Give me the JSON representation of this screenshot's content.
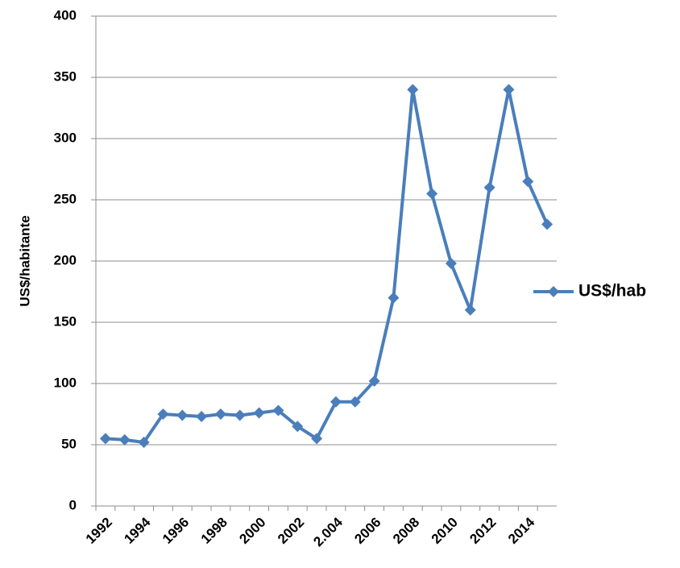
{
  "chart_data": {
    "type": "line",
    "y_label": "US$/habitante",
    "categories": [
      "1992",
      null,
      "1994",
      null,
      "1996",
      null,
      "1998",
      null,
      "2000",
      null,
      "2002",
      null,
      "2.004",
      null,
      "2006",
      null,
      "2008",
      null,
      "2010",
      null,
      "2012",
      null,
      "2014",
      null
    ],
    "series": [
      {
        "name": "US$/hab",
        "color": "#4a7ebb",
        "values": [
          55,
          54,
          52,
          75,
          74,
          73,
          75,
          74,
          76,
          78,
          65,
          55,
          85,
          85,
          102,
          170,
          340,
          255,
          198,
          160,
          260,
          340,
          265,
          230
        ]
      }
    ],
    "ylim": [
      0,
      400
    ],
    "yticks": [
      0,
      50,
      100,
      150,
      200,
      250,
      300,
      350,
      400
    ],
    "grid": true,
    "legend": "right"
  }
}
